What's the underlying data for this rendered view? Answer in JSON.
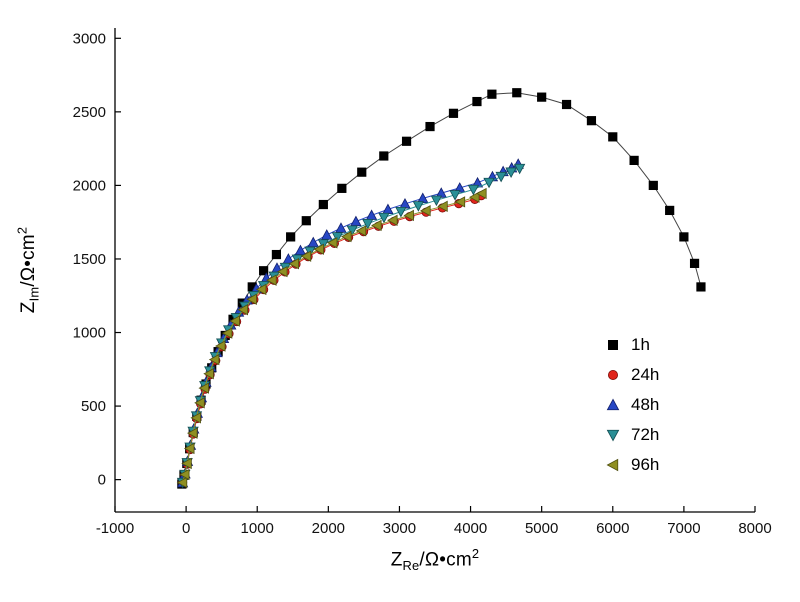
{
  "chart_data": {
    "type": "scatter",
    "title": "",
    "xlabel": {
      "prefix": "Z",
      "sub": "Re",
      "mid": "/Ω•cm",
      "sup": "2"
    },
    "ylabel": {
      "prefix": "Z",
      "sub": "Im",
      "mid": "/Ω•cm",
      "sup": "2"
    },
    "xlim": [
      -1000,
      8000
    ],
    "ylim": [
      -220,
      3070
    ],
    "xticks": [
      -1000,
      0,
      1000,
      2000,
      3000,
      4000,
      5000,
      6000,
      7000,
      8000
    ],
    "yticks": [
      0,
      500,
      1000,
      1500,
      2000,
      2500,
      3000
    ],
    "grid": false,
    "legend_position": "right-middle",
    "axis_color": "#000000",
    "series": [
      {
        "name": "1h",
        "marker": "square",
        "color": "#000000",
        "edge": "#000000",
        "line_color": "#444444",
        "points": [
          [
            -60,
            -30
          ],
          [
            -30,
            30
          ],
          [
            10,
            110
          ],
          [
            50,
            210
          ],
          [
            100,
            320
          ],
          [
            150,
            430
          ],
          [
            210,
            540
          ],
          [
            280,
            650
          ],
          [
            360,
            760
          ],
          [
            450,
            870
          ],
          [
            550,
            980
          ],
          [
            660,
            1090
          ],
          [
            790,
            1200
          ],
          [
            930,
            1310
          ],
          [
            1090,
            1420
          ],
          [
            1270,
            1530
          ],
          [
            1470,
            1650
          ],
          [
            1690,
            1760
          ],
          [
            1930,
            1870
          ],
          [
            2190,
            1980
          ],
          [
            2470,
            2090
          ],
          [
            2780,
            2200
          ],
          [
            3100,
            2300
          ],
          [
            3430,
            2400
          ],
          [
            3760,
            2490
          ],
          [
            4090,
            2570
          ],
          [
            4300,
            2620
          ],
          [
            4650,
            2630
          ],
          [
            5000,
            2600
          ],
          [
            5350,
            2550
          ],
          [
            5700,
            2440
          ],
          [
            6000,
            2330
          ],
          [
            6300,
            2170
          ],
          [
            6570,
            2000
          ],
          [
            6800,
            1830
          ],
          [
            7000,
            1650
          ],
          [
            7150,
            1470
          ],
          [
            7240,
            1310
          ]
        ]
      },
      {
        "name": "24h",
        "marker": "circle",
        "color": "#e0241b",
        "edge": "#7a0c08",
        "line_color": "#e0241b",
        "points": [
          [
            -50,
            -20
          ],
          [
            -20,
            30
          ],
          [
            15,
            105
          ],
          [
            55,
            205
          ],
          [
            100,
            310
          ],
          [
            150,
            415
          ],
          [
            205,
            515
          ],
          [
            267,
            615
          ],
          [
            337,
            713
          ],
          [
            417,
            810
          ],
          [
            505,
            903
          ],
          [
            603,
            992
          ],
          [
            710,
            1075
          ],
          [
            827,
            1152
          ],
          [
            953,
            1224
          ],
          [
            1090,
            1292
          ],
          [
            1235,
            1355
          ],
          [
            1390,
            1412
          ],
          [
            1545,
            1465
          ],
          [
            1715,
            1516
          ],
          [
            1895,
            1562
          ],
          [
            2085,
            1606
          ],
          [
            2285,
            1647
          ],
          [
            2495,
            1686
          ],
          [
            2705,
            1722
          ],
          [
            2925,
            1756
          ],
          [
            3145,
            1788
          ],
          [
            3375,
            1818
          ],
          [
            3605,
            1847
          ],
          [
            3835,
            1876
          ],
          [
            4060,
            1905
          ],
          [
            4150,
            1930
          ]
        ]
      },
      {
        "name": "48h",
        "marker": "triangle-up",
        "color": "#2747c4",
        "edge": "#13206b",
        "line_color": "#2747c4",
        "points": [
          [
            -50,
            -20
          ],
          [
            -15,
            40
          ],
          [
            20,
            125
          ],
          [
            62,
            235
          ],
          [
            108,
            345
          ],
          [
            158,
            452
          ],
          [
            216,
            558
          ],
          [
            280,
            663
          ],
          [
            353,
            765
          ],
          [
            436,
            864
          ],
          [
            527,
            960
          ],
          [
            628,
            1052
          ],
          [
            738,
            1140
          ],
          [
            858,
            1222
          ],
          [
            988,
            1298
          ],
          [
            1128,
            1370
          ],
          [
            1278,
            1438
          ],
          [
            1438,
            1500
          ],
          [
            1608,
            1558
          ],
          [
            1788,
            1612
          ],
          [
            1978,
            1663
          ],
          [
            2178,
            1710
          ],
          [
            2388,
            1755
          ],
          [
            2608,
            1797
          ],
          [
            2838,
            1837
          ],
          [
            3078,
            1875
          ],
          [
            3328,
            1912
          ],
          [
            3588,
            1948
          ],
          [
            3848,
            1983
          ],
          [
            4098,
            2018
          ],
          [
            4308,
            2060
          ],
          [
            4458,
            2095
          ],
          [
            4578,
            2120
          ],
          [
            4670,
            2145
          ]
        ]
      },
      {
        "name": "72h",
        "marker": "triangle-down",
        "color": "#2a8f96",
        "edge": "#134d52",
        "line_color": "#2a8f96",
        "points": [
          [
            -50,
            -20
          ],
          [
            -18,
            35
          ],
          [
            15,
            115
          ],
          [
            55,
            220
          ],
          [
            98,
            328
          ],
          [
            146,
            432
          ],
          [
            200,
            535
          ],
          [
            262,
            638
          ],
          [
            332,
            738
          ],
          [
            412,
            835
          ],
          [
            500,
            928
          ],
          [
            598,
            1017
          ],
          [
            706,
            1100
          ],
          [
            824,
            1178
          ],
          [
            952,
            1250
          ],
          [
            1090,
            1318
          ],
          [
            1238,
            1382
          ],
          [
            1396,
            1442
          ],
          [
            1564,
            1498
          ],
          [
            1742,
            1552
          ],
          [
            1930,
            1602
          ],
          [
            2128,
            1650
          ],
          [
            2336,
            1696
          ],
          [
            2554,
            1740
          ],
          [
            2782,
            1782
          ],
          [
            3020,
            1822
          ],
          [
            3266,
            1861
          ],
          [
            3520,
            1899
          ],
          [
            3782,
            1936
          ],
          [
            4040,
            1972
          ],
          [
            4260,
            2020
          ],
          [
            4430,
            2060
          ],
          [
            4570,
            2090
          ],
          [
            4690,
            2115
          ]
        ]
      },
      {
        "name": "96h",
        "marker": "triangle-left",
        "color": "#8f8f22",
        "edge": "#4f4f10",
        "line_color": "#8f8f22",
        "points": [
          [
            -50,
            -20
          ],
          [
            -18,
            35
          ],
          [
            14,
            110
          ],
          [
            52,
            212
          ],
          [
            95,
            316
          ],
          [
            143,
            420
          ],
          [
            196,
            522
          ],
          [
            256,
            622
          ],
          [
            324,
            720
          ],
          [
            402,
            816
          ],
          [
            488,
            908
          ],
          [
            584,
            996
          ],
          [
            690,
            1078
          ],
          [
            805,
            1155
          ],
          [
            929,
            1226
          ],
          [
            1063,
            1293
          ],
          [
            1207,
            1356
          ],
          [
            1360,
            1414
          ],
          [
            1522,
            1468
          ],
          [
            1693,
            1519
          ],
          [
            1873,
            1566
          ],
          [
            2062,
            1610
          ],
          [
            2260,
            1652
          ],
          [
            2467,
            1691
          ],
          [
            2683,
            1728
          ],
          [
            2908,
            1763
          ],
          [
            3138,
            1796
          ],
          [
            3373,
            1828
          ],
          [
            3613,
            1858
          ],
          [
            3858,
            1888
          ],
          [
            4060,
            1920
          ],
          [
            4160,
            1945
          ]
        ]
      }
    ]
  }
}
